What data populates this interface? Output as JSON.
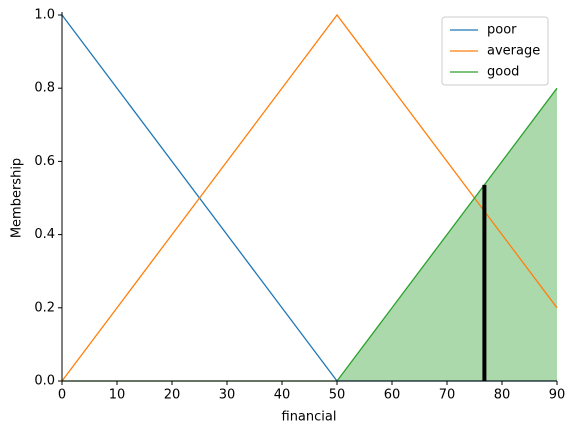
{
  "chart_data": {
    "type": "line",
    "x": [
      0,
      50,
      90
    ],
    "series": [
      {
        "name": "poor",
        "color": "#1f77b4",
        "values": [
          1,
          0,
          0
        ]
      },
      {
        "name": "average",
        "color": "#ff7f0e",
        "values": [
          0,
          1,
          0.2
        ]
      },
      {
        "name": "good",
        "color": "#2ca02c",
        "values": [
          0,
          0,
          0.8
        ],
        "fill": true
      }
    ],
    "marker_line": {
      "x": 76.8,
      "y": 0.536,
      "color": "#000000"
    },
    "xlabel": "financial",
    "ylabel": "Membership",
    "xlim": [
      0,
      90
    ],
    "xticks": [
      0,
      10,
      20,
      30,
      40,
      50,
      60,
      70,
      80,
      90
    ],
    "ylim": [
      0,
      1
    ],
    "yticks": [
      {
        "value": 0,
        "label": "0.0"
      },
      0.2,
      0.4,
      0.6,
      0.8,
      {
        "value": 1,
        "label": "1.0"
      }
    ],
    "legend": "upper right"
  }
}
